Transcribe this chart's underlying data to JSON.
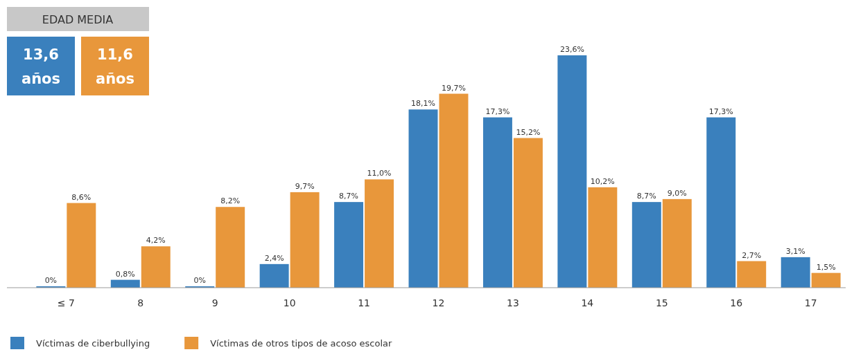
{
  "chart_data": {
    "type": "bar",
    "categories": [
      "≤ 7",
      "8",
      "9",
      "10",
      "11",
      "12",
      "13",
      "14",
      "15",
      "16",
      "17"
    ],
    "series": [
      {
        "name": "Víctimas de ciberbullying",
        "color": "#3a80bd",
        "values": [
          0,
          0.8,
          0,
          2.4,
          8.7,
          18.1,
          17.3,
          23.6,
          8.7,
          17.3,
          3.1
        ],
        "value_labels": [
          "0%",
          "0,8%",
          "0%",
          "2,4%",
          "8,7%",
          "18,1%",
          "17,3%",
          "23,6%",
          "8,7%",
          "17,3%",
          "3,1%"
        ]
      },
      {
        "name": "Víctimas de otros tipos de acoso escolar",
        "color": "#e8973b",
        "values": [
          8.6,
          4.2,
          8.2,
          9.7,
          11.0,
          19.7,
          15.2,
          10.2,
          9.0,
          2.7,
          1.5
        ],
        "value_labels": [
          "8,6%",
          "4,2%",
          "8,2%",
          "9,7%",
          "11,0%",
          "19,7%",
          "15,2%",
          "10,2%",
          "9,0%",
          "2,7%",
          "1,5%"
        ]
      }
    ],
    "annotations": [
      "EDAD MEDIA",
      "13,6\naños",
      "11,6\naños"
    ],
    "legend": "bottom left"
  }
}
